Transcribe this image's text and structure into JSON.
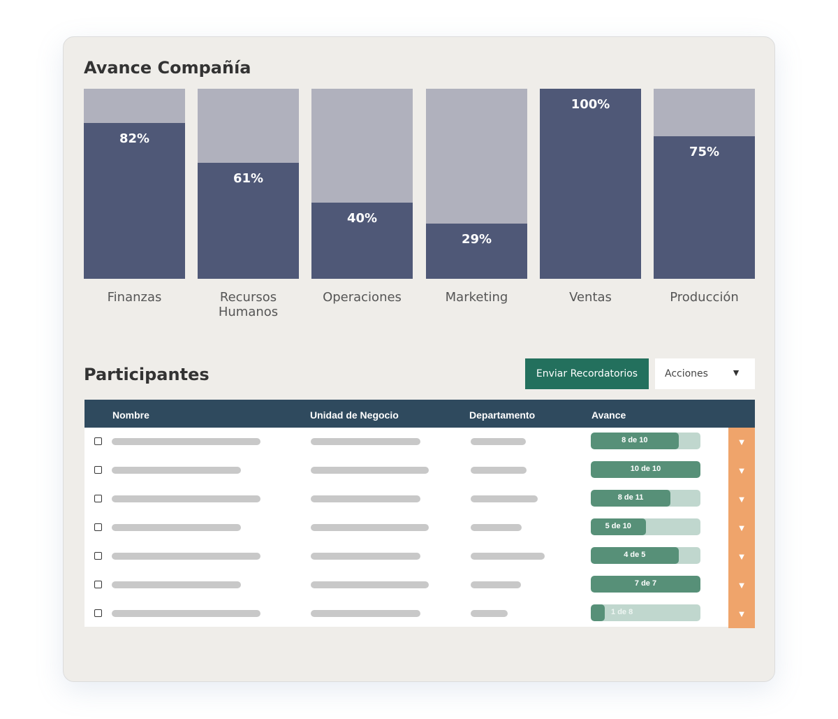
{
  "company_progress": {
    "title": "Avance Compañía"
  },
  "chart_data": {
    "type": "bar",
    "title": "Avance Compañía",
    "categories": [
      "Finanzas",
      "Recursos\nHumanos",
      "Operaciones",
      "Marketing",
      "Ventas",
      "Producción"
    ],
    "values": [
      82,
      61,
      40,
      29,
      100,
      75
    ],
    "value_labels": [
      "82%",
      "61%",
      "40%",
      "29%",
      "100%",
      "75%"
    ],
    "ylim": [
      0,
      100
    ],
    "stacked_remainder": true,
    "grid": false,
    "colors": {
      "fill": "#4f5877",
      "remainder": "#b0b1bd"
    }
  },
  "participants": {
    "title": "Participantes",
    "send_reminders_label": "Enviar Recordatorios",
    "actions_label": "Acciones",
    "actions_icon": "caret-down-icon",
    "columns": [
      "Nombre",
      "Unidad de Negocio",
      "Departamento",
      "Avance"
    ],
    "rows": [
      {
        "completed": 8,
        "total": 10,
        "label": "8 de 10"
      },
      {
        "completed": 10,
        "total": 10,
        "label": "10 de 10"
      },
      {
        "completed": 8,
        "total": 11,
        "label": "8 de 11"
      },
      {
        "completed": 5,
        "total": 10,
        "label": "5 de 10"
      },
      {
        "completed": 4,
        "total": 5,
        "label": "4 de 5"
      },
      {
        "completed": 7,
        "total": 7,
        "label": "7 de 7"
      },
      {
        "completed": 1,
        "total": 8,
        "label": "1 de 8"
      }
    ]
  },
  "colors": {
    "header": "#2f4a5e",
    "button": "#23705d",
    "progress_fill": "#579078",
    "progress_track": "#c0d7ce",
    "row_action": "#efa46b"
  }
}
